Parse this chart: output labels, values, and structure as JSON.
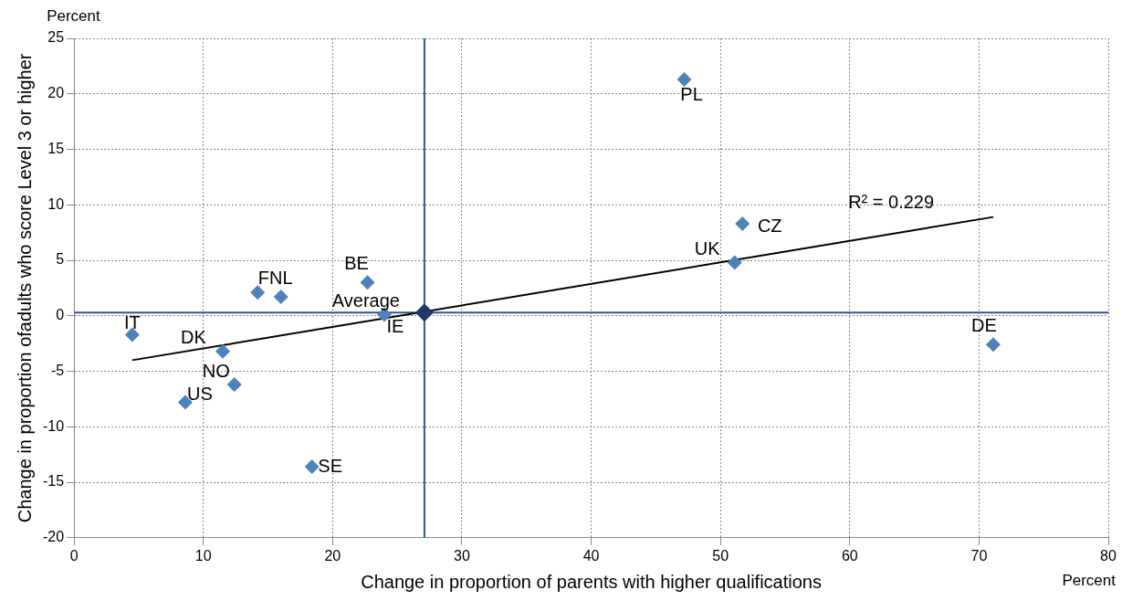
{
  "chart_data": {
    "type": "scatter",
    "xlabel": "Change in proportion of parents with higher qualifications",
    "ylabel": "Change in proportion ofadults who score Level 3 or higher",
    "xlim": [
      0,
      80
    ],
    "xticks": [
      0,
      10,
      20,
      30,
      40,
      50,
      60,
      70,
      80
    ],
    "ylim": [
      -20,
      25
    ],
    "yticks": [
      -20,
      -15,
      -10,
      -5,
      0,
      5,
      10,
      15,
      20,
      25
    ],
    "grid": true,
    "legend": false,
    "marker": "diamond",
    "series": [
      {
        "color": "#4f81bd",
        "x": [
          47.2,
          51.7,
          51.1,
          71.1,
          22.7,
          14.2,
          16.0,
          24.0,
          4.5,
          11.5,
          12.4,
          8.6,
          18.4
        ],
        "values": [
          21.3,
          8.3,
          4.8,
          -2.6,
          3.0,
          2.1,
          1.7,
          0.1,
          -1.7,
          -3.2,
          -6.2,
          -7.8,
          -13.6
        ]
      },
      {
        "color": "#1f3864",
        "x": [
          27.1
        ],
        "values": [
          0.3
        ]
      },
      {
        "type": "line",
        "color": "#000000",
        "marker": "none",
        "x": [
          4.5,
          71.1
        ],
        "values": [
          -4.0,
          8.9
        ]
      }
    ],
    "ref_lines": [
      {
        "axis": "x",
        "value": 27.1,
        "color": "#2f5597"
      },
      {
        "axis": "y",
        "value": 0.3,
        "color": "#2f5597"
      }
    ],
    "annotations": [
      {
        "text": "PL",
        "x": 47.2,
        "y": 21.3
      },
      {
        "text": "CZ",
        "x": 51.7,
        "y": 8.3
      },
      {
        "text": "UK",
        "x": 51.1,
        "y": 4.8
      },
      {
        "text": "DE",
        "x": 71.1,
        "y": -2.6
      },
      {
        "text": "BE",
        "x": 22.7,
        "y": 3.0
      },
      {
        "text": "FNL",
        "x": 16.0,
        "y": 1.7
      },
      {
        "text": "Average",
        "x": 27.1,
        "y": 0.3
      },
      {
        "text": "IE",
        "x": 24.0,
        "y": 0.1
      },
      {
        "text": "IT",
        "x": 4.5,
        "y": -1.7
      },
      {
        "text": "DK",
        "x": 11.5,
        "y": -3.2
      },
      {
        "text": "NO",
        "x": 12.4,
        "y": -6.2
      },
      {
        "text": "US",
        "x": 8.6,
        "y": -7.8
      },
      {
        "text": "SE",
        "x": 18.4,
        "y": -13.6
      },
      "R² = 0.229",
      "Percent",
      "Percent"
    ]
  }
}
